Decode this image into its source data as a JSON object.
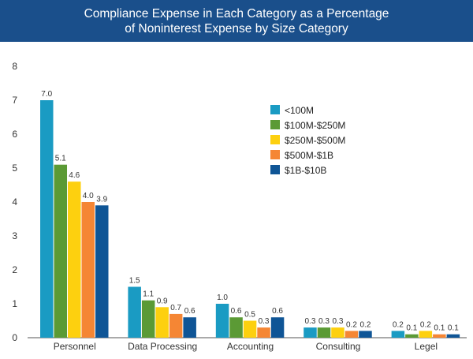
{
  "chart_data": {
    "type": "bar",
    "title_lines": [
      "Compliance Expense in Each Category as a Percentage",
      "of Noninterest Expense by Size Category"
    ],
    "categories": [
      "Personnel",
      "Data Processing",
      "Accounting",
      "Consulting",
      "Legel"
    ],
    "series": [
      {
        "name": "<100M",
        "color": "#1a9bc3",
        "values": [
          7.0,
          1.5,
          1.0,
          0.3,
          0.2
        ]
      },
      {
        "name": "$100M-$250M",
        "color": "#5b9a35",
        "values": [
          5.1,
          1.1,
          0.6,
          0.3,
          0.1
        ]
      },
      {
        "name": "$250M-$500M",
        "color": "#fdd00f",
        "values": [
          4.6,
          0.9,
          0.5,
          0.3,
          0.2
        ]
      },
      {
        "name": "$500M-$1B",
        "color": "#f58634",
        "values": [
          4.0,
          0.7,
          0.3,
          0.2,
          0.1
        ]
      },
      {
        "name": "$1B-$10B",
        "color": "#0f5596",
        "values": [
          3.9,
          0.6,
          0.6,
          0.2,
          0.1
        ]
      }
    ],
    "ylim": [
      0,
      8
    ],
    "yticks": [
      "0",
      "1",
      "2",
      "3",
      "4",
      "5",
      "6",
      "7",
      "8"
    ],
    "legend_position": "top-right",
    "grid": false
  }
}
